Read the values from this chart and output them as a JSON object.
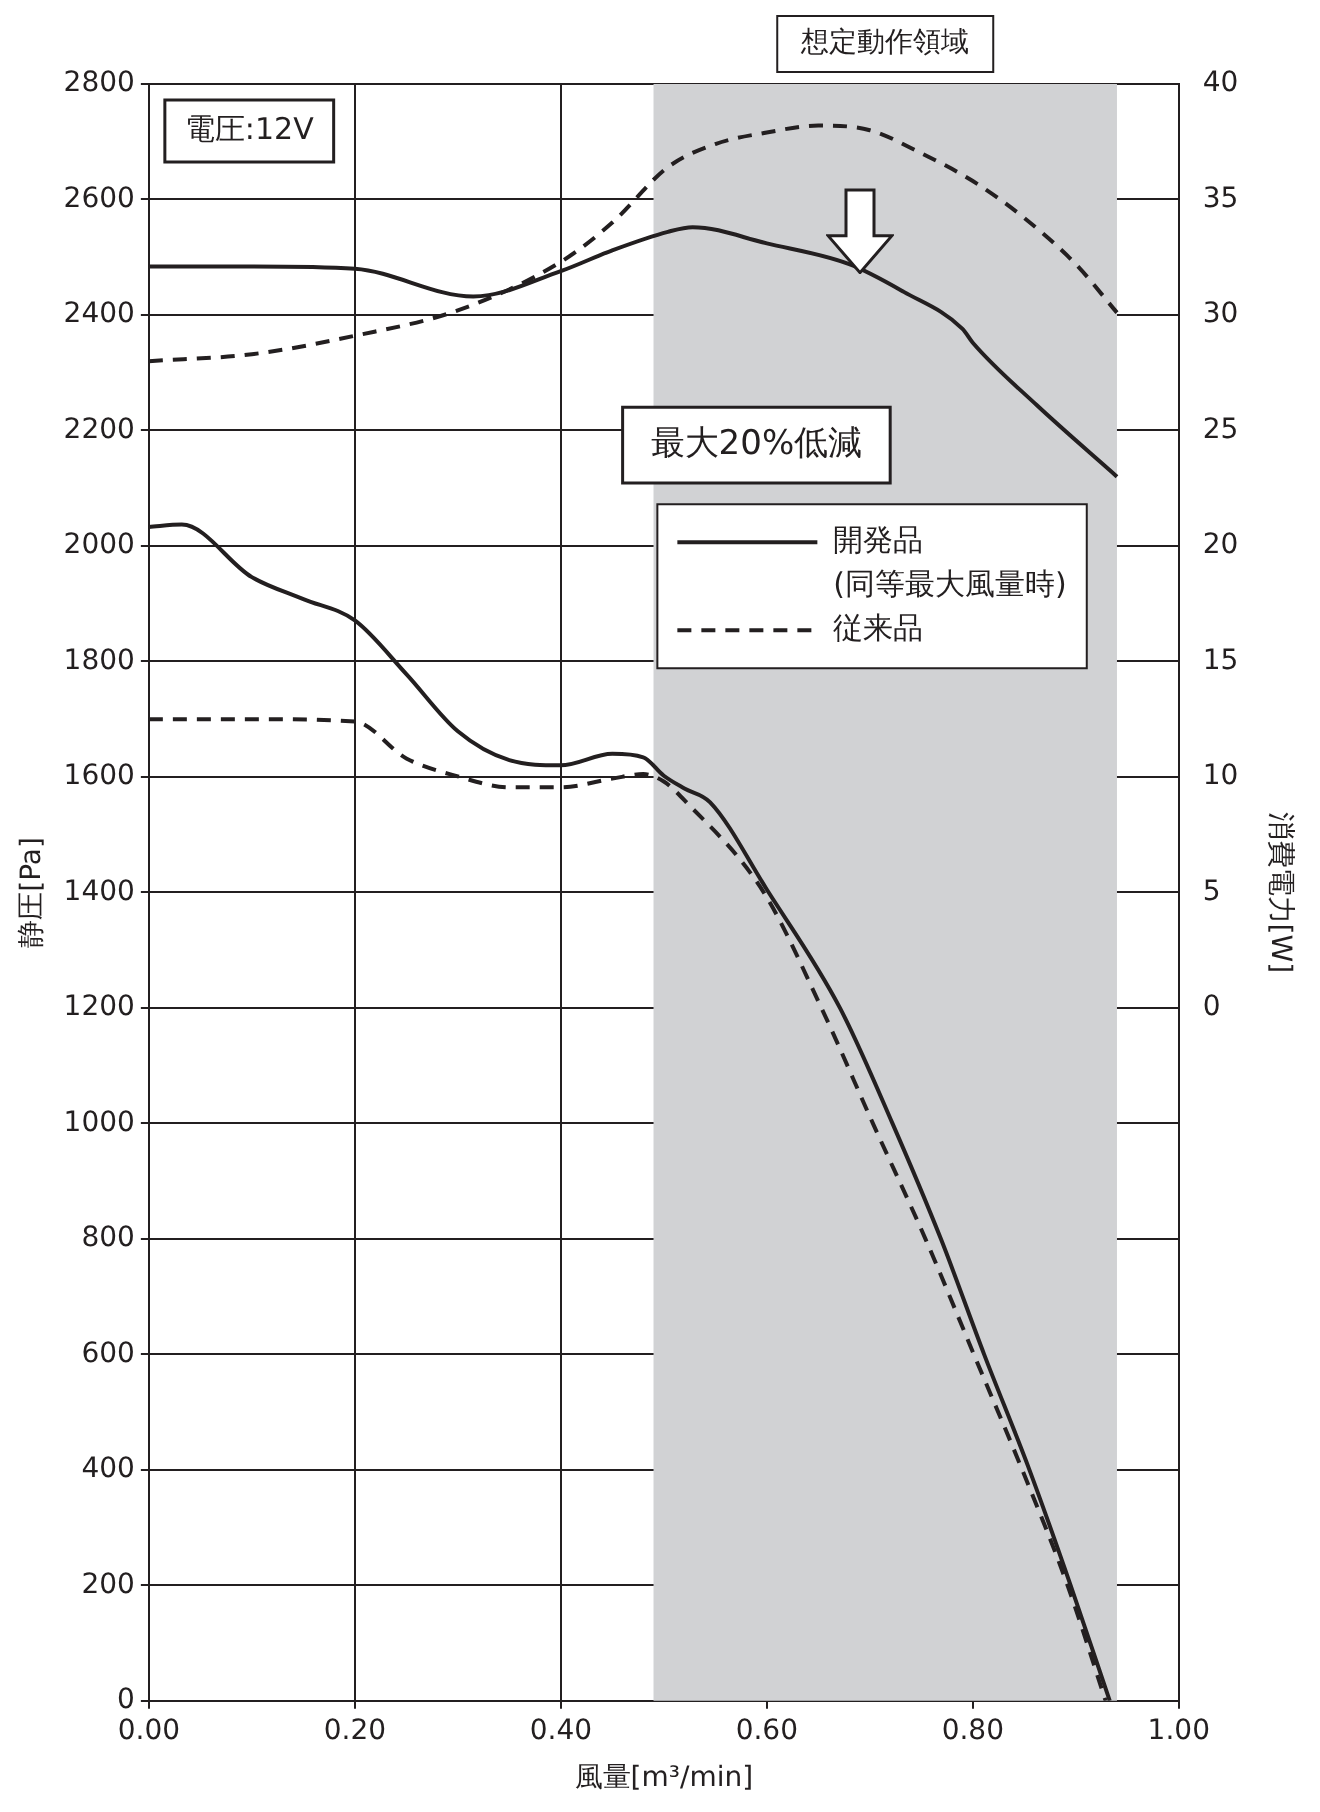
{
  "chart_data": {
    "type": "line",
    "xlabel": "風量[m³/min]",
    "ylabel": "静圧[Pa]",
    "y2label": "消費電力[W]",
    "xlim": [
      0,
      1
    ],
    "xticks": [
      {
        "value": 0,
        "label": "0.00"
      },
      {
        "value": 0.2,
        "label": "0.20"
      },
      {
        "value": 0.4,
        "label": "0.40"
      },
      {
        "value": 0.6,
        "label": "0.60"
      },
      {
        "value": 0.8,
        "label": "0.80"
      },
      {
        "value": 1,
        "label": "1.00"
      }
    ],
    "ylim": [
      0,
      2800
    ],
    "yticks": [
      0,
      200,
      400,
      600,
      800,
      1000,
      1200,
      1400,
      1600,
      1800,
      2000,
      2200,
      2400,
      2600,
      2800
    ],
    "y2lim": [
      -30,
      40
    ],
    "y2ticks": [
      0,
      5,
      10,
      15,
      20,
      25,
      30,
      35,
      40
    ],
    "grid": true,
    "legend": "right",
    "marker": "none",
    "bands": [
      {
        "axis": "x",
        "from": 0.49,
        "to": 0.94,
        "label": "想定動作領域",
        "color": "#d1d2d4"
      }
    ],
    "annotations": [
      "電圧:12V",
      "最大20%低減"
    ],
    "series": [
      {
        "name": "開発品\n(同等最大風量時)",
        "color": "#231f20",
        "line_style": "solid",
        "x": [
          0,
          0.032,
          0.1,
          0.15,
          0.2,
          0.25,
          0.3,
          0.35,
          0.4,
          0.45,
          0.48,
          0.5,
          0.52,
          0.545,
          0.6,
          0.671,
          0.722,
          0.769,
          0.811,
          0.855,
          0.895,
          0.933
        ],
        "values": [
          2033,
          2037,
          1946,
          1908,
          1871,
          1778,
          1679,
          1629,
          1620,
          1640,
          1634,
          1602,
          1580,
          1556,
          1405,
          1200,
          1000,
          800,
          600,
          400,
          200,
          0
        ]
      },
      {
        "name": "従来品",
        "color": "#231f20",
        "line_style": "dashed",
        "x": [
          0,
          0.1,
          0.2,
          0.25,
          0.3,
          0.35,
          0.4,
          0.45,
          0.48,
          0.5,
          0.522,
          0.597,
          0.653,
          0.703,
          0.754,
          0.801,
          0.848,
          0.892,
          0.929
        ],
        "values": [
          1700,
          1700,
          1696,
          1632,
          1601,
          1582,
          1582,
          1597,
          1605,
          1592,
          1556,
          1400,
          1200,
          1000,
          800,
          600,
          400,
          200,
          0
        ]
      },
      {
        "axis": "y2",
        "color": "#231f20",
        "line_style": "solid",
        "x": [
          0,
          0.1,
          0.2,
          0.315,
          0.4,
          0.45,
          0.504,
          0.528,
          0.6,
          0.68,
          0.733,
          0.79,
          0.8,
          0.862,
          0.94
        ],
        "values": [
          32.1,
          32.1,
          32.0,
          30.8,
          31.9,
          32.8,
          33.6,
          33.8,
          33.1,
          32.2,
          31.0,
          29.4,
          28.8,
          26.1,
          23.0
        ]
      },
      {
        "axis": "y2",
        "color": "#231f20",
        "line_style": "dashed",
        "x": [
          0,
          0.1,
          0.2,
          0.3,
          0.4,
          0.45,
          0.504,
          0.55,
          0.6,
          0.65,
          0.7,
          0.75,
          0.8,
          0.85,
          0.9,
          0.94
        ],
        "values": [
          28.0,
          28.3,
          29.1,
          30.2,
          32.3,
          34.0,
          36.4,
          37.4,
          37.9,
          38.2,
          38.0,
          37.0,
          35.8,
          34.2,
          32.2,
          30.1
        ]
      }
    ]
  }
}
